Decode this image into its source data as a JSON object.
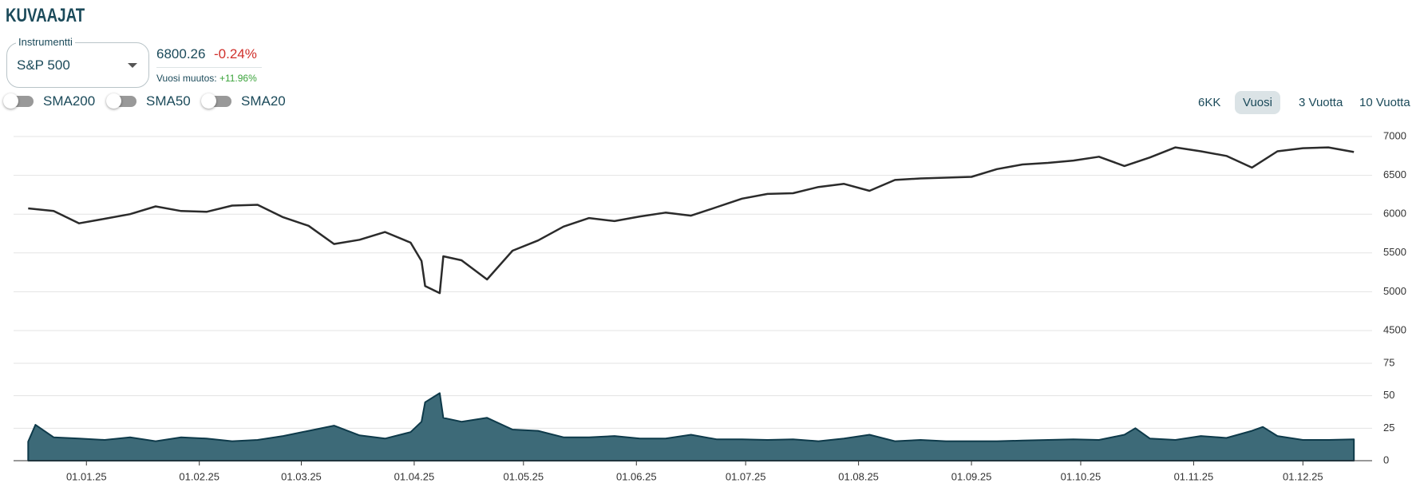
{
  "header": {
    "title": "KUVAAJAT"
  },
  "instrument": {
    "label": "Instrumentti",
    "selected": "S&P 500"
  },
  "quote": {
    "price": "6800.26",
    "change": "-0.24%",
    "yearly_label": "Vuosi muutos:",
    "yearly_change": "+11.96%"
  },
  "toggles": [
    "SMA200",
    "SMA50",
    "SMA20"
  ],
  "ranges": [
    "6KK",
    "Vuosi",
    "3 Vuotta",
    "10 Vuotta"
  ],
  "selected_range": "Vuosi",
  "chart_data": [
    {
      "type": "line",
      "color": "#2b2b2b",
      "x": [
        "16.12.24",
        "23.12.24",
        "30.12.24",
        "06.01.25",
        "13.01.25",
        "20.01.25",
        "27.01.25",
        "03.02.25",
        "10.02.25",
        "17.02.25",
        "24.02.25",
        "03.03.25",
        "10.03.25",
        "17.03.25",
        "24.03.25",
        "31.03.25",
        "03.04.25",
        "04.04.25",
        "08.04.25",
        "09.04.25",
        "14.04.25",
        "21.04.25",
        "28.04.25",
        "05.05.25",
        "12.05.25",
        "19.05.25",
        "26.05.25",
        "02.06.25",
        "09.06.25",
        "16.06.25",
        "23.06.25",
        "30.06.25",
        "07.07.25",
        "14.07.25",
        "21.07.25",
        "28.07.25",
        "04.08.25",
        "11.08.25",
        "18.08.25",
        "25.08.25",
        "01.09.25",
        "08.09.25",
        "15.09.25",
        "22.09.25",
        "29.09.25",
        "06.10.25",
        "13.10.25",
        "20.10.25",
        "27.10.25",
        "03.11.25",
        "10.11.25",
        "17.11.25",
        "24.11.25",
        "01.12.25",
        "08.12.25",
        "15.12.25"
      ],
      "values": [
        6074,
        6040,
        5882,
        5940,
        6000,
        6100,
        6040,
        6030,
        6110,
        6120,
        5960,
        5850,
        5615,
        5670,
        5770,
        5633,
        5396,
        5074,
        4982,
        5457,
        5405,
        5158,
        5529,
        5660,
        5840,
        5950,
        5910,
        5970,
        6020,
        5980,
        6090,
        6200,
        6260,
        6270,
        6350,
        6390,
        6300,
        6440,
        6460,
        6470,
        6480,
        6580,
        6640,
        6660,
        6690,
        6740,
        6620,
        6730,
        6860,
        6810,
        6750,
        6600,
        6810,
        6850,
        6860,
        6800
      ],
      "xlim": [
        "12.12.24",
        "20.12.25"
      ],
      "ylim": [
        4500,
        7000
      ],
      "yticks": [
        4500,
        5000,
        5500,
        6000,
        6500,
        7000
      ],
      "grid": true
    },
    {
      "type": "area",
      "color": "#3d6a78",
      "line_color": "#0e3a4a",
      "x": [
        "16.12.24",
        "18.12.24",
        "23.12.24",
        "30.12.24",
        "06.01.25",
        "13.01.25",
        "20.01.25",
        "27.01.25",
        "03.02.25",
        "10.02.25",
        "17.02.25",
        "24.02.25",
        "03.03.25",
        "10.03.25",
        "17.03.25",
        "24.03.25",
        "31.03.25",
        "03.04.25",
        "04.04.25",
        "08.04.25",
        "09.04.25",
        "14.04.25",
        "21.04.25",
        "28.04.25",
        "05.05.25",
        "12.05.25",
        "19.05.25",
        "26.05.25",
        "02.06.25",
        "09.06.25",
        "16.06.25",
        "23.06.25",
        "30.06.25",
        "07.07.25",
        "14.07.25",
        "21.07.25",
        "28.07.25",
        "04.08.25",
        "11.08.25",
        "18.08.25",
        "25.08.25",
        "01.09.25",
        "08.09.25",
        "15.09.25",
        "22.09.25",
        "29.09.25",
        "06.10.25",
        "13.10.25",
        "16.10.25",
        "20.10.25",
        "27.10.25",
        "03.11.25",
        "10.11.25",
        "17.11.25",
        "20.11.25",
        "24.11.25",
        "01.12.25",
        "08.12.25",
        "15.12.25"
      ],
      "values": [
        14.7,
        27.6,
        18,
        17,
        16,
        18,
        15,
        18,
        17,
        15,
        16,
        19,
        23,
        27,
        19.5,
        17,
        22,
        30,
        45,
        52,
        33,
        30,
        33,
        24,
        23,
        18,
        18,
        19,
        17,
        17,
        20,
        16.5,
        16.5,
        16,
        16.5,
        15,
        17,
        20,
        15,
        16,
        15,
        15,
        15,
        15.5,
        16,
        16.5,
        16,
        20,
        25,
        17,
        16,
        19,
        17.5,
        23,
        26,
        19,
        16,
        16,
        16.5
      ],
      "xlim": [
        "12.12.24",
        "20.12.25"
      ],
      "xticks": [
        "01.01.25",
        "01.02.25",
        "01.03.25",
        "01.04.25",
        "01.05.25",
        "01.06.25",
        "01.07.25",
        "01.08.25",
        "01.09.25",
        "01.10.25",
        "01.11.25",
        "01.12.25"
      ],
      "ylim": [
        0,
        75
      ],
      "yticks": [
        0,
        25,
        50,
        75
      ],
      "grid": true
    }
  ]
}
